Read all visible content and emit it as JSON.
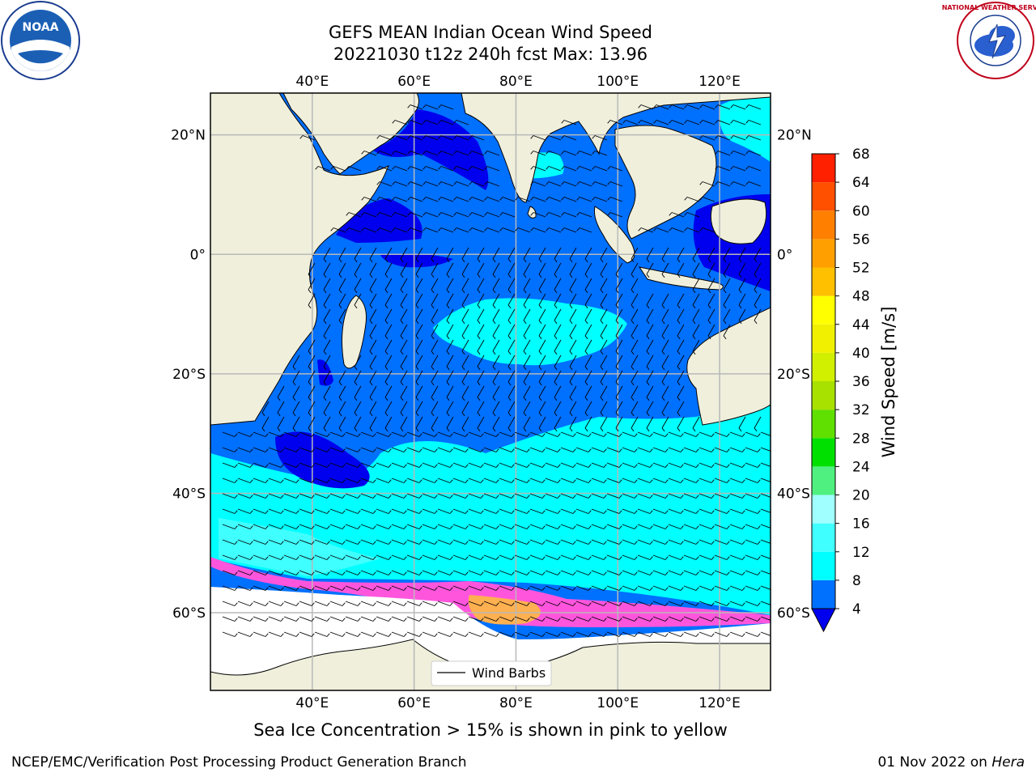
{
  "title_line1": "GEFS MEAN Indian Ocean Wind Speed",
  "title_line2": "20221030 t12z 240h fcst   Max: 13.96",
  "caption": "Sea Ice Concentration > 15% is shown in pink to yellow",
  "footer_left": "NCEP/EMC/Verification Post Processing Product Generation Branch",
  "footer_date": "01 Nov 2022 on",
  "footer_host": "Hera",
  "logos": {
    "left": "NOAA",
    "right": "NATIONAL WEATHER SERVICE"
  },
  "legend_label": "Wind Barbs",
  "map": {
    "lon_range": [
      20,
      130
    ],
    "lat_range": [
      -73,
      27
    ],
    "lon_ticks": [
      40,
      60,
      80,
      100,
      120
    ],
    "lon_tick_labels": [
      "40°E",
      "60°E",
      "80°E",
      "100°E",
      "120°E"
    ],
    "lat_ticks": [
      20,
      0,
      -20,
      -40,
      -60
    ],
    "lat_tick_labels": [
      "20°N",
      "0°",
      "20°S",
      "40°S",
      "60°S"
    ]
  },
  "colorbar": {
    "label": "Wind Speed [m/s]",
    "ticks": [
      "4",
      "8",
      "12",
      "16",
      "20",
      "24",
      "28",
      "32",
      "36",
      "40",
      "44",
      "48",
      "52",
      "56",
      "60",
      "64",
      "68"
    ],
    "colors": [
      "#0070ff",
      "#00ffff",
      "#40ffff",
      "#a0ffff",
      "#50f080",
      "#00e000",
      "#60e000",
      "#a8e000",
      "#d0f000",
      "#f0f000",
      "#ffff00",
      "#ffc000",
      "#ffa000",
      "#ff8000",
      "#ff5000",
      "#ff2000"
    ],
    "extend_color": "#0000ee"
  },
  "colors": {
    "land": "#efefdc",
    "ocean_deep": "#0070ff",
    "ocean_dark": "#0000ee",
    "ocean_light": "#00ffff",
    "ocean_lighter": "#40ffff",
    "ice_pink": "#ff55dd",
    "ice_orange": "#ffb050"
  }
}
